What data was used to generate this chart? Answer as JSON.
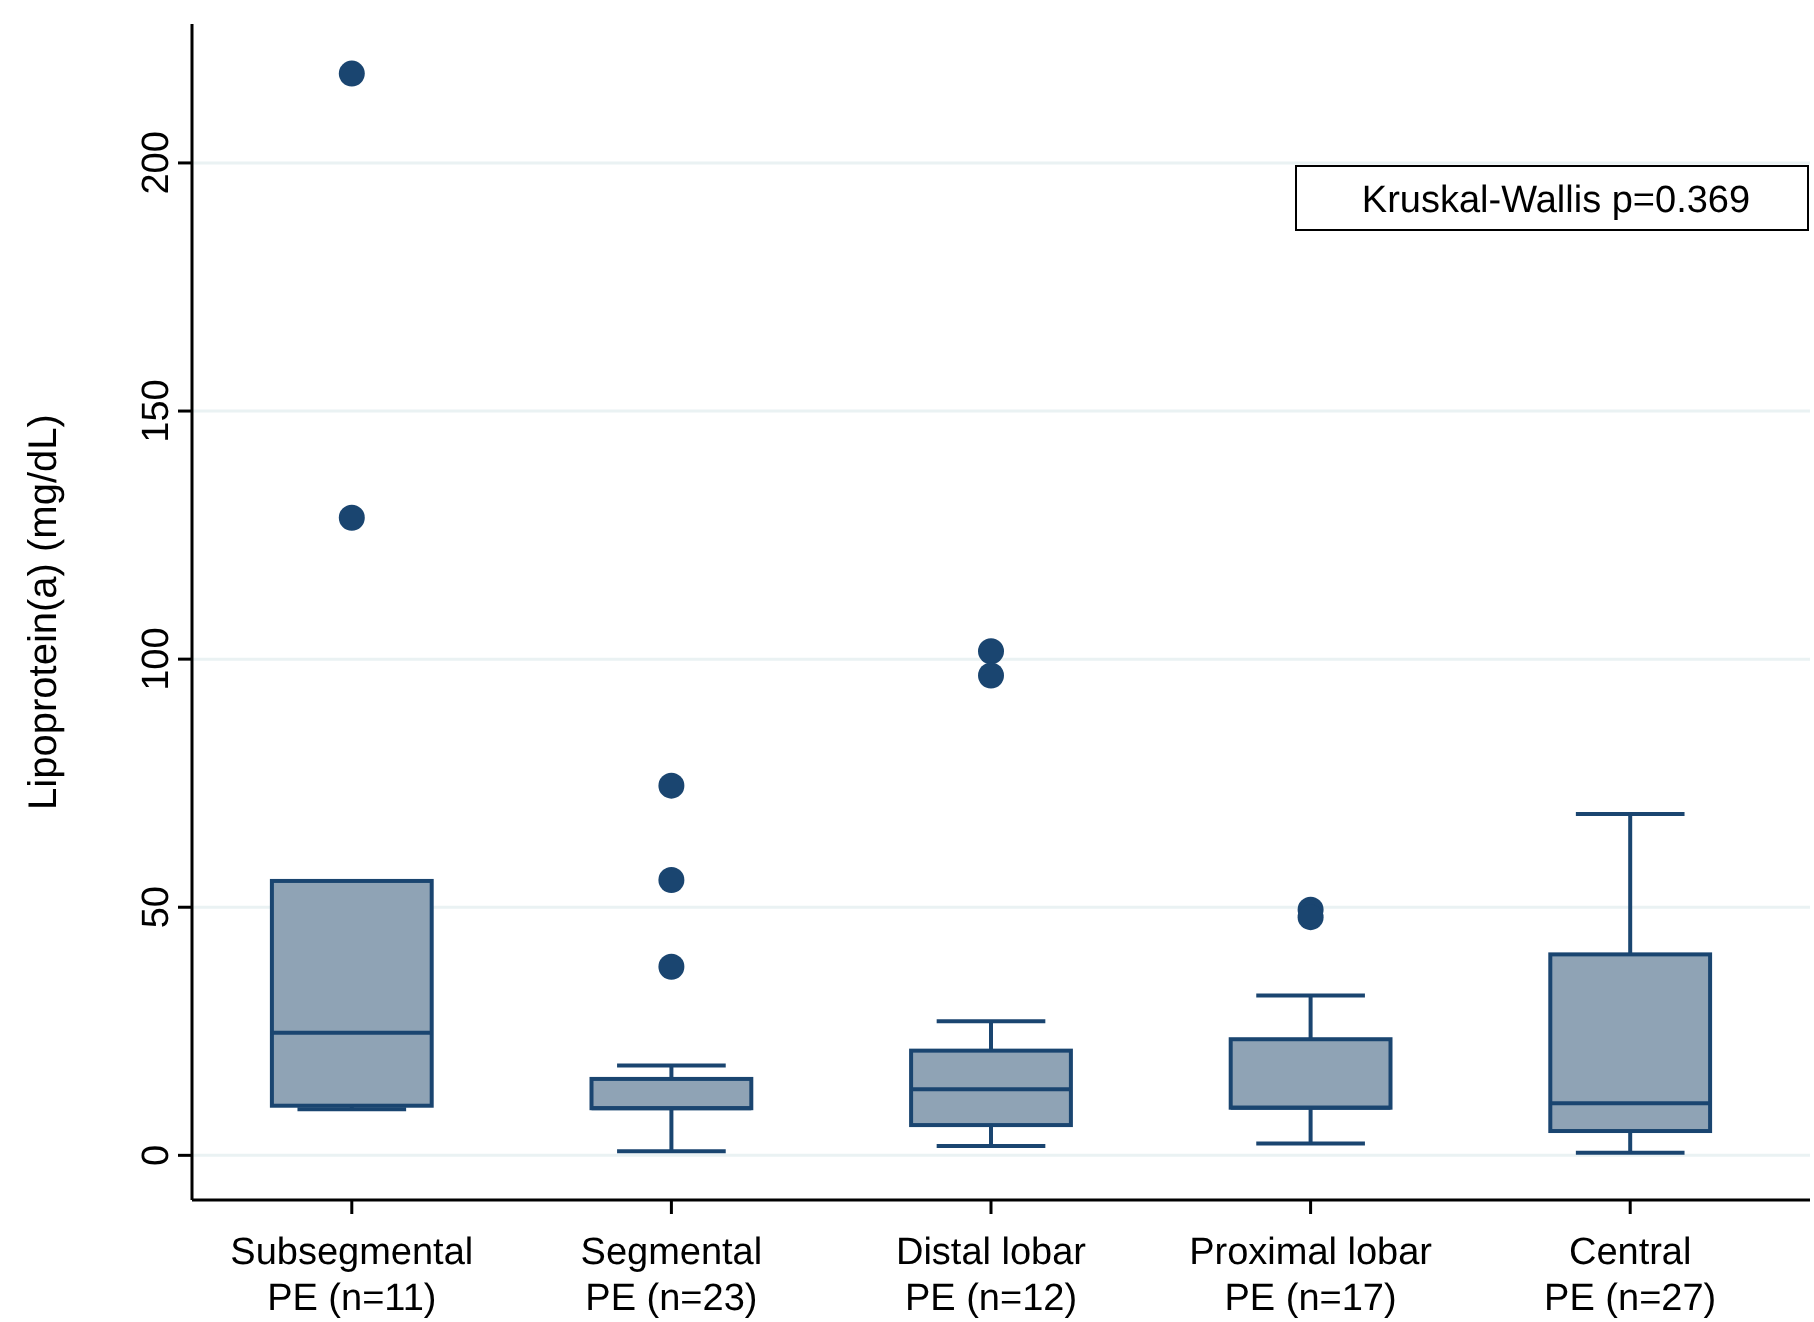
{
  "chart_data": {
    "type": "box",
    "ylabel": "Lipoprotein(a) (mg/dL)",
    "categories": [
      "Subsegmental\nPE (n=11)",
      "Segmental\nPE (n=23)",
      "Distal lobar\nPE (n=12)",
      "Proximal lobar\nPE (n=17)",
      "Central\nPE (n=27)"
    ],
    "series": [
      {
        "color": "#1a4570",
        "boxes": [
          {
            "low": 9.3,
            "q1": 10.0,
            "median": 24.7,
            "q3": 55.3,
            "high": 55.3,
            "outliers": [
              218,
              128.5
            ]
          },
          {
            "low": 0.8,
            "q1": 9.5,
            "median": 9.5,
            "q3": 15.4,
            "high": 18.1,
            "outliers": [
              74.5,
              55.5,
              38.0
            ]
          },
          {
            "low": 1.9,
            "q1": 6.1,
            "median": 13.3,
            "q3": 21.1,
            "high": 27.0,
            "outliers": [
              101.6,
              96.7
            ]
          },
          {
            "low": 2.4,
            "q1": 9.6,
            "median": 9.6,
            "q3": 23.4,
            "high": 32.2,
            "outliers": [
              49.5,
              48.0
            ]
          },
          {
            "low": 0.5,
            "q1": 4.9,
            "median": 10.5,
            "q3": 40.5,
            "high": 68.8
          }
        ]
      }
    ],
    "ylim": [
      -9,
      228
    ],
    "yticks": [
      0,
      50,
      100,
      150,
      200
    ],
    "grid": "y",
    "annotations": [
      "Kruskal-Wallis p=0.369"
    ]
  }
}
